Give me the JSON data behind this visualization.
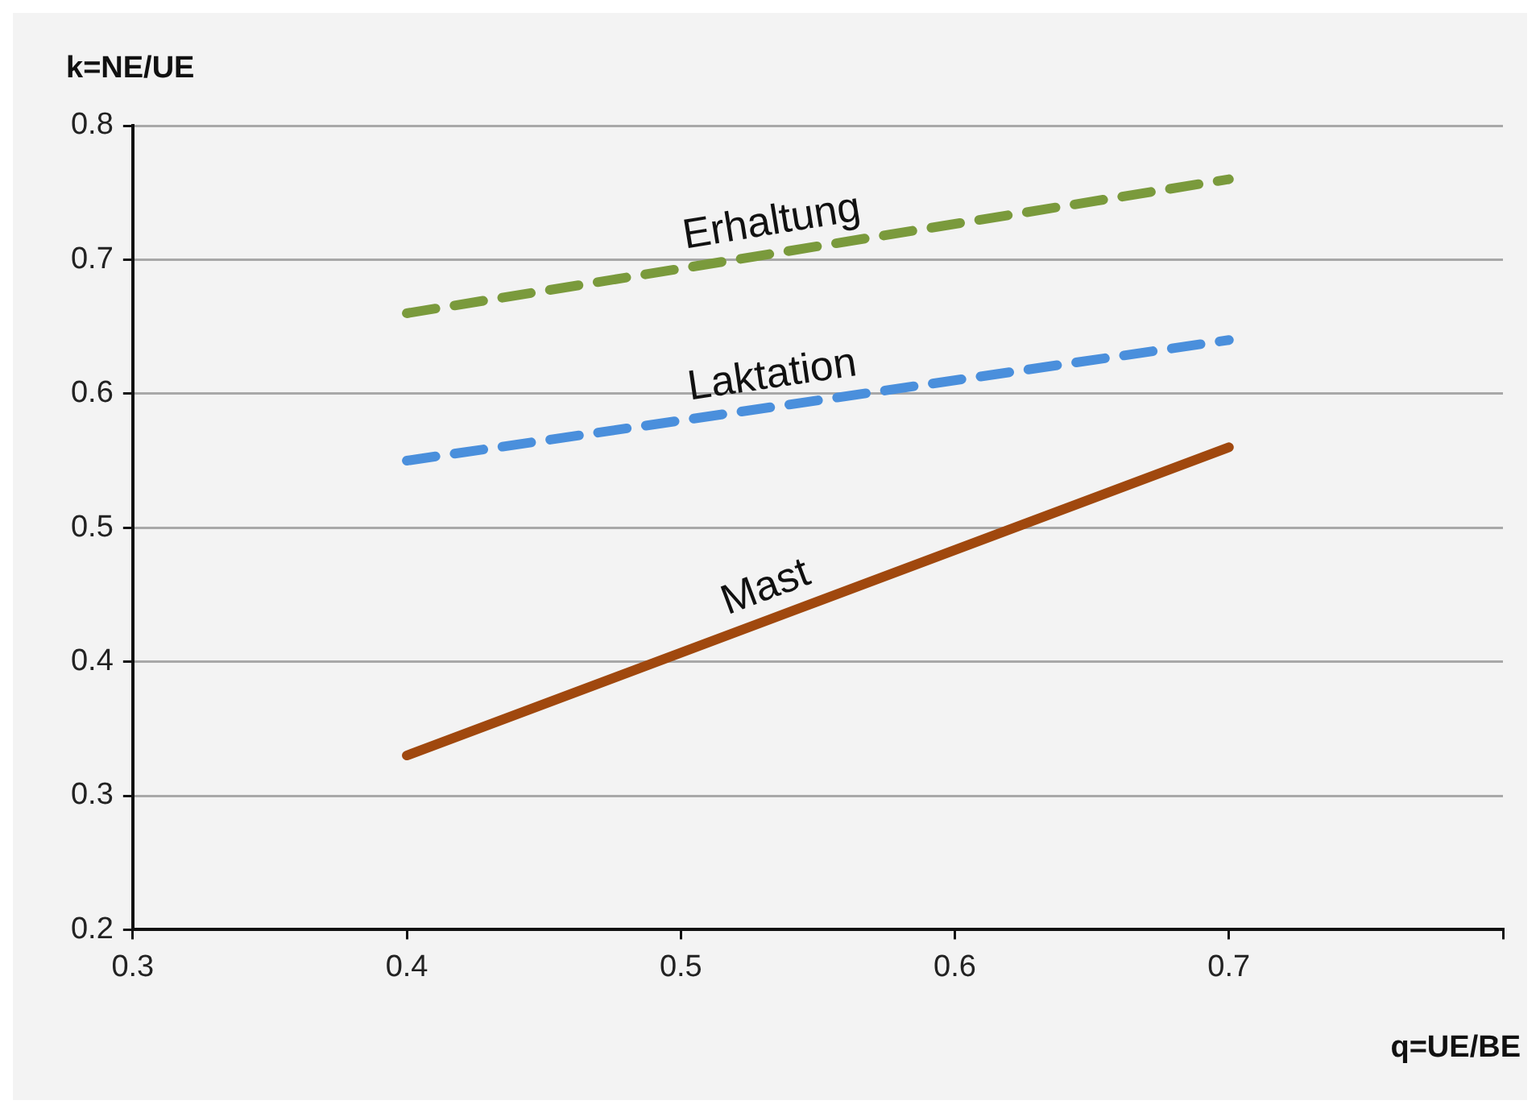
{
  "chart_data": {
    "type": "line",
    "xlabel": "q=UE/BE",
    "ylabel": "k=NE/UE",
    "x": [
      0.4,
      0.7
    ],
    "series": [
      {
        "name": "Erhaltung",
        "color": "#7a9a3c",
        "values": [
          0.66,
          0.76
        ],
        "line_style": "dashed"
      },
      {
        "name": "Laktation",
        "color": "#4a8fdc",
        "values": [
          0.55,
          0.64
        ],
        "line_style": "dashed"
      },
      {
        "name": "Mast",
        "color": "#a0480e",
        "values": [
          0.33,
          0.56
        ],
        "line_style": "solid"
      }
    ],
    "xlim": [
      0.3,
      0.8
    ],
    "xticks": [
      0.3,
      0.4,
      0.5,
      0.6,
      0.7,
      {
        "value": 0.8,
        "label": null
      }
    ],
    "ylim": [
      0.2,
      0.8
    ],
    "yticks": [
      0.2,
      0.3,
      0.4,
      0.5,
      0.6,
      0.7,
      0.8
    ],
    "grid": "y",
    "legend": false,
    "marker": "none"
  }
}
